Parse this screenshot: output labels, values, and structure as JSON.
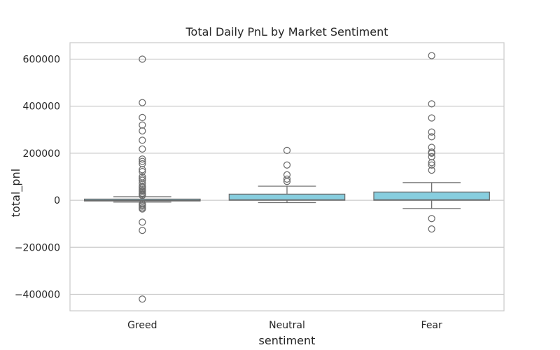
{
  "chart_data": {
    "type": "box",
    "title": "Total Daily PnL by Market Sentiment",
    "xlabel": "sentiment",
    "ylabel": "total_pnl",
    "categories": [
      "Greed",
      "Neutral",
      "Fear"
    ],
    "ylim": [
      -470000,
      670000
    ],
    "yticks": [
      -400000,
      -200000,
      0,
      200000,
      400000,
      600000
    ],
    "ytick_labels": [
      "−400000",
      "−200000",
      "0",
      "200000",
      "400000",
      "600000"
    ],
    "grid": true,
    "box_color": "#87cedf",
    "edge_color": "#6b6b6b",
    "boxes": [
      {
        "category": "Greed",
        "whisker_low": -8000,
        "q1": -3000,
        "median": 0,
        "q3": 5000,
        "whisker_high": 15000,
        "outliers": [
          600000,
          415000,
          352000,
          320000,
          295000,
          255000,
          218000,
          175000,
          165000,
          155000,
          130000,
          122000,
          100000,
          92000,
          85000,
          72000,
          60000,
          55000,
          48000,
          42000,
          37000,
          30000,
          25000,
          20000,
          -15000,
          -20000,
          -25000,
          -32000,
          -37000,
          -93000,
          -128000,
          -420000
        ]
      },
      {
        "category": "Neutral",
        "whisker_low": -10000,
        "q1": 0,
        "median": 2000,
        "q3": 26000,
        "whisker_high": 60000,
        "outliers": [
          212000,
          150000,
          108000,
          90000,
          80000
        ]
      },
      {
        "category": "Fear",
        "whisker_low": -35000,
        "q1": 0,
        "median": 2000,
        "q3": 35000,
        "whisker_high": 75000,
        "outliers": [
          615000,
          410000,
          350000,
          290000,
          270000,
          225000,
          205000,
          200000,
          185000,
          160000,
          150000,
          128000,
          -78000,
          -122000
        ]
      }
    ]
  }
}
